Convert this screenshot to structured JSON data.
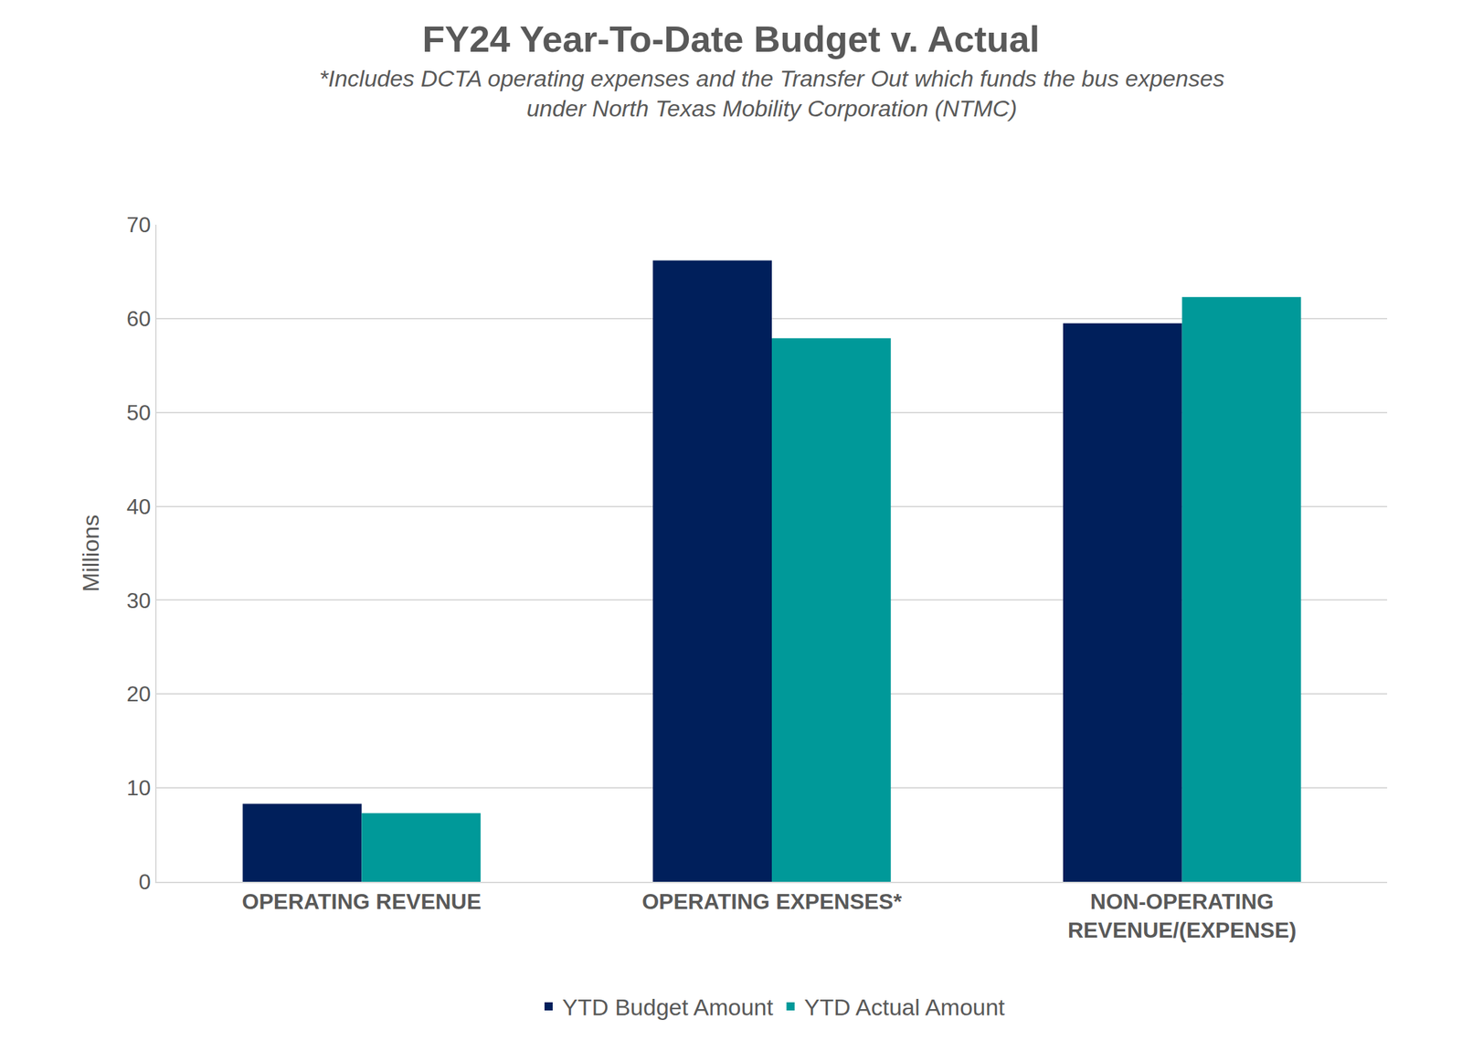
{
  "chart_data": {
    "type": "bar",
    "title": "FY24 Year-To-Date Budget v. Actual",
    "subtitle": "*Includes DCTA operating expenses and the Transfer Out which funds the bus expenses under North Texas Mobility Corporation (NTMC)",
    "y_label": "Millions",
    "categories": [
      "OPERATING REVENUE",
      "OPERATING EXPENSES*",
      "NON-OPERATING REVENUE/(EXPENSE)"
    ],
    "series": [
      {
        "name": "YTD Budget Amount",
        "color": "#001f5b",
        "values": [
          8.3,
          66.2,
          59.5
        ]
      },
      {
        "name": "YTD Actual Amount",
        "color": "#009999",
        "values": [
          7.3,
          57.9,
          62.3
        ]
      }
    ],
    "ylim": [
      0,
      70
    ],
    "yticks": [
      0,
      10,
      20,
      30,
      40,
      50,
      60,
      70
    ],
    "grid": true,
    "legend": "bottom"
  }
}
